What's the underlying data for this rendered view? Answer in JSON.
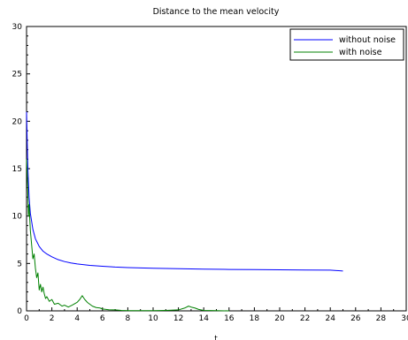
{
  "chart_data": {
    "type": "line",
    "title": "Distance to the mean velocity",
    "xlabel": "t",
    "ylabel": "",
    "xlim": [
      0,
      30
    ],
    "ylim": [
      0,
      30
    ],
    "x_ticks": [
      0,
      2,
      4,
      6,
      8,
      10,
      12,
      14,
      16,
      18,
      20,
      22,
      24,
      26,
      28,
      30
    ],
    "y_ticks": [
      0,
      5,
      10,
      15,
      20,
      25,
      30
    ],
    "grid": false,
    "legend_position": "top-right",
    "series": [
      {
        "name": "without noise",
        "color": "#0000ff",
        "x": [
          0.0,
          0.05,
          0.1,
          0.2,
          0.3,
          0.5,
          0.7,
          1.0,
          1.3,
          1.6,
          2.0,
          2.5,
          3.0,
          3.5,
          4.0,
          5.0,
          6.0,
          7.0,
          8.0,
          9.0,
          10.0,
          12.0,
          14.0,
          16.0,
          18.0,
          20.0,
          22.0,
          24.0,
          25.0
        ],
        "y": [
          21.0,
          18.0,
          15.2,
          12.0,
          10.3,
          8.6,
          7.6,
          6.8,
          6.3,
          6.0,
          5.7,
          5.4,
          5.2,
          5.05,
          4.95,
          4.8,
          4.7,
          4.62,
          4.57,
          4.53,
          4.5,
          4.45,
          4.4,
          4.37,
          4.35,
          4.33,
          4.31,
          4.3,
          4.2
        ]
      },
      {
        "name": "with noise",
        "color": "#008000",
        "x": [
          0.0,
          0.05,
          0.1,
          0.15,
          0.2,
          0.3,
          0.4,
          0.5,
          0.6,
          0.7,
          0.8,
          0.9,
          1.0,
          1.1,
          1.2,
          1.3,
          1.4,
          1.5,
          1.6,
          1.8,
          2.0,
          2.2,
          2.5,
          2.8,
          3.0,
          3.3,
          3.6,
          4.0,
          4.2,
          4.4,
          4.5,
          4.6,
          4.8,
          5.0,
          5.2,
          5.5,
          5.8,
          6.0,
          6.5,
          7.0,
          7.5,
          8.0,
          9.0,
          10.0,
          11.0,
          12.0,
          12.5,
          12.8,
          13.0,
          13.3,
          13.6,
          14.0,
          15.0,
          16.0
        ],
        "y": [
          16.0,
          14.5,
          12.5,
          10.0,
          11.2,
          8.5,
          7.0,
          5.5,
          6.0,
          4.5,
          3.5,
          4.0,
          2.2,
          2.8,
          2.0,
          2.5,
          1.8,
          1.3,
          1.5,
          1.0,
          1.2,
          0.7,
          0.8,
          0.5,
          0.6,
          0.4,
          0.6,
          0.9,
          1.2,
          1.6,
          1.4,
          1.2,
          0.9,
          0.7,
          0.5,
          0.35,
          0.3,
          0.2,
          0.12,
          0.1,
          0.05,
          0.02,
          0.02,
          0.02,
          0.05,
          0.1,
          0.3,
          0.5,
          0.4,
          0.3,
          0.15,
          0.05,
          0.02,
          0.0
        ]
      }
    ]
  }
}
